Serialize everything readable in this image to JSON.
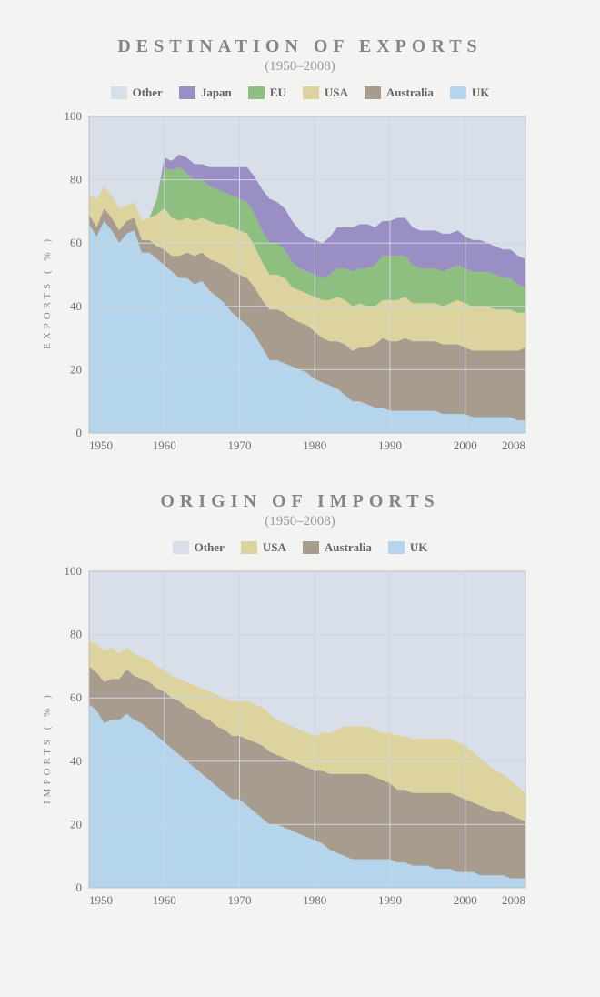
{
  "background_color": "#f3f3f1",
  "title_color": "#858585",
  "subtitle_color": "#9a9a9a",
  "axis_text_color": "#707070",
  "grid_color": "#cfd6dd",
  "plot_bg_color": "#dde4ec",
  "plot_border_color": "#bdbdbd",
  "charts": [
    {
      "id": "exports",
      "title": "DESTINATION OF EXPORTS",
      "subtitle": "(1950–2008)",
      "ylabel": "EXPORTS  ( % )",
      "type": "stacked-area",
      "xlim": [
        1950,
        2008
      ],
      "ylim": [
        0,
        100
      ],
      "ytick_step": 20,
      "xticks": [
        1950,
        1960,
        1970,
        1980,
        1990,
        2000,
        2008
      ],
      "years": [
        1950,
        1951,
        1952,
        1953,
        1954,
        1955,
        1956,
        1957,
        1958,
        1959,
        1960,
        1961,
        1962,
        1963,
        1964,
        1965,
        1966,
        1967,
        1968,
        1969,
        1970,
        1971,
        1972,
        1973,
        1974,
        1975,
        1976,
        1977,
        1978,
        1979,
        1980,
        1981,
        1982,
        1983,
        1984,
        1985,
        1986,
        1987,
        1988,
        1989,
        1990,
        1991,
        1992,
        1993,
        1994,
        1995,
        1996,
        1997,
        1998,
        1999,
        2000,
        2001,
        2002,
        2003,
        2004,
        2005,
        2006,
        2007,
        2008
      ],
      "series": [
        {
          "name": "UK",
          "color": "#b4d5eb",
          "values": [
            66,
            62,
            67,
            64,
            60,
            63,
            64,
            57,
            57,
            55,
            53,
            51,
            49,
            49,
            47,
            48,
            45,
            43,
            41,
            38,
            36,
            34,
            31,
            27,
            23,
            23,
            22,
            21,
            20,
            19,
            17,
            16,
            15,
            14,
            12,
            10,
            10,
            9,
            8,
            8,
            7,
            7,
            7,
            7,
            7,
            7,
            7,
            6,
            6,
            6,
            6,
            5,
            5,
            5,
            5,
            5,
            5,
            4,
            4
          ]
        },
        {
          "name": "Australia",
          "color": "#a89c8e",
          "values": [
            3,
            3,
            4,
            4,
            4,
            4,
            4,
            4,
            4,
            4,
            5,
            5,
            7,
            8,
            9,
            9,
            10,
            11,
            12,
            13,
            14,
            15,
            15,
            15,
            16,
            16,
            16,
            15,
            15,
            15,
            15,
            14,
            14,
            15,
            16,
            16,
            17,
            18,
            20,
            22,
            22,
            22,
            23,
            22,
            22,
            22,
            22,
            22,
            22,
            22,
            21,
            21,
            21,
            21,
            21,
            21,
            21,
            22,
            23
          ]
        },
        {
          "name": "USA",
          "color": "#ddd39e",
          "values": [
            6,
            9,
            7,
            7,
            7,
            5,
            5,
            6,
            7,
            10,
            13,
            12,
            11,
            11,
            11,
            11,
            12,
            12,
            13,
            14,
            14,
            14,
            13,
            12,
            11,
            11,
            11,
            10,
            10,
            10,
            11,
            12,
            13,
            14,
            14,
            14,
            14,
            13,
            12,
            12,
            13,
            13,
            13,
            12,
            12,
            12,
            12,
            12,
            13,
            14,
            14,
            14,
            14,
            14,
            13,
            13,
            13,
            12,
            11
          ]
        },
        {
          "name": "EU",
          "color": "#8ebe80",
          "values": [
            0,
            0,
            0,
            0,
            0,
            0,
            0,
            0,
            0,
            5,
            13,
            15,
            17,
            14,
            13,
            12,
            11,
            11,
            10,
            10,
            10,
            10,
            10,
            10,
            10,
            10,
            9,
            8,
            7,
            7,
            7,
            7,
            8,
            9,
            10,
            11,
            11,
            12,
            13,
            14,
            14,
            14,
            13,
            12,
            11,
            11,
            11,
            11,
            11,
            11,
            11,
            11,
            11,
            11,
            11,
            10,
            10,
            9,
            8
          ]
        },
        {
          "name": "Japan",
          "color": "#998fc5",
          "values": [
            0,
            0,
            0,
            0,
            0,
            0,
            0,
            0,
            0,
            0,
            3,
            3,
            4,
            5,
            5,
            5,
            6,
            7,
            8,
            9,
            10,
            11,
            12,
            13,
            14,
            13,
            13,
            13,
            12,
            11,
            11,
            11,
            12,
            13,
            13,
            14,
            14,
            14,
            12,
            11,
            11,
            12,
            12,
            12,
            12,
            12,
            12,
            12,
            11,
            11,
            10,
            10,
            10,
            9,
            9,
            9,
            9,
            9,
            9
          ]
        },
        {
          "name": "Other",
          "color": "#d8dfe8",
          "values": []
        }
      ]
    },
    {
      "id": "imports",
      "title": "ORIGIN OF IMPORTS",
      "subtitle": "(1950–2008)",
      "ylabel": "IMPORTS  ( % )",
      "type": "stacked-area",
      "xlim": [
        1950,
        2008
      ],
      "ylim": [
        0,
        100
      ],
      "ytick_step": 20,
      "xticks": [
        1950,
        1960,
        1970,
        1980,
        1990,
        2000,
        2008
      ],
      "years": [
        1950,
        1951,
        1952,
        1953,
        1954,
        1955,
        1956,
        1957,
        1958,
        1959,
        1960,
        1961,
        1962,
        1963,
        1964,
        1965,
        1966,
        1967,
        1968,
        1969,
        1970,
        1971,
        1972,
        1973,
        1974,
        1975,
        1976,
        1977,
        1978,
        1979,
        1980,
        1981,
        1982,
        1983,
        1984,
        1985,
        1986,
        1987,
        1988,
        1989,
        1990,
        1991,
        1992,
        1993,
        1994,
        1995,
        1996,
        1997,
        1998,
        1999,
        2000,
        2001,
        2002,
        2003,
        2004,
        2005,
        2006,
        2007,
        2008
      ],
      "series": [
        {
          "name": "UK",
          "color": "#b4d5eb",
          "values": [
            58,
            56,
            52,
            53,
            53,
            55,
            53,
            52,
            50,
            48,
            46,
            44,
            42,
            40,
            38,
            36,
            34,
            32,
            30,
            28,
            28,
            26,
            24,
            22,
            20,
            20,
            19,
            18,
            17,
            16,
            15,
            14,
            12,
            11,
            10,
            9,
            9,
            9,
            9,
            9,
            9,
            8,
            8,
            7,
            7,
            7,
            6,
            6,
            6,
            5,
            5,
            5,
            4,
            4,
            4,
            4,
            3,
            3,
            3
          ]
        },
        {
          "name": "Australia",
          "color": "#a89c8e",
          "values": [
            12,
            12,
            13,
            13,
            13,
            14,
            14,
            14,
            15,
            15,
            16,
            16,
            17,
            17,
            18,
            18,
            19,
            19,
            20,
            20,
            20,
            21,
            22,
            23,
            23,
            22,
            22,
            22,
            22,
            22,
            22,
            23,
            24,
            25,
            26,
            27,
            27,
            27,
            26,
            25,
            24,
            23,
            23,
            23,
            23,
            23,
            24,
            24,
            24,
            24,
            23,
            22,
            22,
            21,
            20,
            20,
            20,
            19,
            18
          ]
        },
        {
          "name": "USA",
          "color": "#ddd39e",
          "values": [
            8,
            9,
            10,
            10,
            8,
            7,
            7,
            7,
            7,
            7,
            7,
            7,
            7,
            8,
            8,
            9,
            9,
            10,
            10,
            11,
            11,
            12,
            12,
            12,
            12,
            11,
            11,
            11,
            11,
            11,
            11,
            12,
            13,
            14,
            15,
            15,
            15,
            15,
            15,
            15,
            16,
            17,
            17,
            17,
            17,
            17,
            17,
            17,
            17,
            17,
            17,
            16,
            15,
            14,
            13,
            12,
            11,
            10,
            9
          ]
        },
        {
          "name": "Other",
          "color": "#d8dfe8",
          "values": []
        }
      ]
    }
  ]
}
